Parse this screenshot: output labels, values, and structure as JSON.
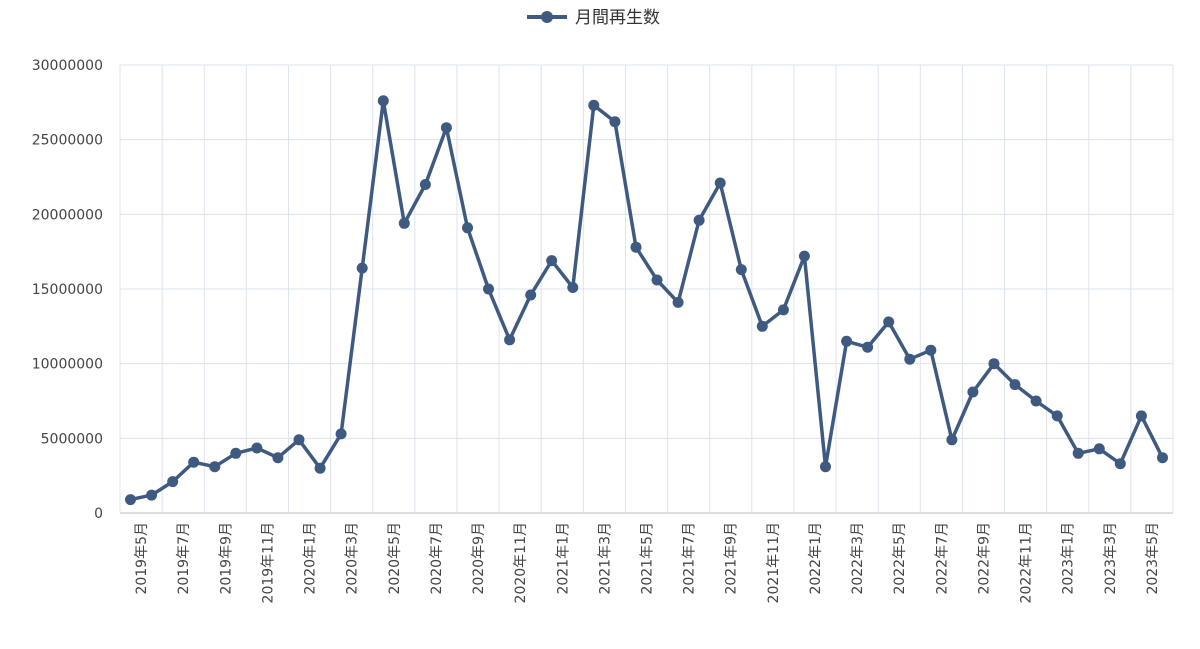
{
  "chart_data": {
    "type": "line",
    "colors": {
      "series": "#3f5a80",
      "grid": "#dde3ec",
      "axis": "#bbbbbb"
    },
    "categories": [
      "2019年5月",
      "2019年6月",
      "2019年7月",
      "2019年8月",
      "2019年9月",
      "2019年10月",
      "2019年11月",
      "2019年12月",
      "2020年1月",
      "2020年2月",
      "2020年3月",
      "2020年4月",
      "2020年5月",
      "2020年6月",
      "2020年7月",
      "2020年8月",
      "2020年9月",
      "2020年10月",
      "2020年11月",
      "2020年12月",
      "2021年1月",
      "2021年2月",
      "2021年3月",
      "2021年4月",
      "2021年5月",
      "2021年6月",
      "2021年7月",
      "2021年8月",
      "2021年9月",
      "2021年10月",
      "2021年11月",
      "2021年12月",
      "2022年1月",
      "2022年2月",
      "2022年3月",
      "2022年4月",
      "2022年5月",
      "2022年6月",
      "2022年7月",
      "2022年8月",
      "2022年9月",
      "2022年10月",
      "2022年11月",
      "2022年12月",
      "2023年1月",
      "2023年2月",
      "2023年3月",
      "2023年4月",
      "2023年5月",
      "2023年6月"
    ],
    "x_tick_labels": [
      "2019年5月",
      "2019年7月",
      "2019年9月",
      "2019年11月",
      "2020年1月",
      "2020年3月",
      "2020年5月",
      "2020年7月",
      "2020年9月",
      "2020年11月",
      "2021年1月",
      "2021年3月",
      "2021年5月",
      "2021年7月",
      "2021年9月",
      "2021年11月",
      "2022年1月",
      "2022年3月",
      "2022年5月",
      "2022年7月",
      "2022年9月",
      "2022年11月",
      "2023年1月",
      "2023年3月",
      "2023年5月"
    ],
    "series": [
      {
        "name": "月間再生数",
        "values": [
          900000,
          1200000,
          2100000,
          3400000,
          3100000,
          4000000,
          4350000,
          3700000,
          4900000,
          3000000,
          5300000,
          16400000,
          27600000,
          19400000,
          22000000,
          25800000,
          19100000,
          15000000,
          11600000,
          14600000,
          16900000,
          15100000,
          27300000,
          26200000,
          17800000,
          15600000,
          14100000,
          19600000,
          22100000,
          16300000,
          12500000,
          13600000,
          17200000,
          3100000,
          11500000,
          11100000,
          12800000,
          10300000,
          10900000,
          4900000,
          8100000,
          10000000,
          8600000,
          7500000,
          6500000,
          4000000,
          4300000,
          3300000,
          6500000,
          3700000
        ]
      }
    ],
    "y_ticks": [
      0,
      5000000,
      10000000,
      15000000,
      20000000,
      25000000,
      30000000
    ],
    "ylim": [
      0,
      30000000
    ],
    "legend_position": "top-center",
    "grid": true
  }
}
